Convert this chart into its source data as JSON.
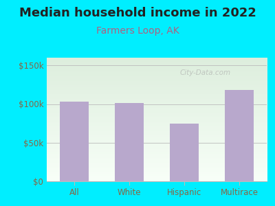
{
  "title": "Median household income in 2022",
  "subtitle": "Farmers Loop, AK",
  "categories": [
    "All",
    "White",
    "Hispanic",
    "Multirace"
  ],
  "values": [
    103000,
    101500,
    75000,
    118000
  ],
  "bar_color": "#b8a8cc",
  "title_fontsize": 13,
  "title_color": "#222222",
  "subtitle_fontsize": 10,
  "subtitle_color": "#b06080",
  "tick_label_color": "#886644",
  "background_outer": "#00eeff",
  "background_inner_top": "#ddeedd",
  "background_inner_bottom": "#f8fff8",
  "yticks": [
    0,
    50000,
    100000,
    150000
  ],
  "ytick_labels": [
    "$0",
    "$50k",
    "$100k",
    "$150k"
  ],
  "ylim": [
    0,
    160000
  ],
  "watermark": "City-Data.com"
}
